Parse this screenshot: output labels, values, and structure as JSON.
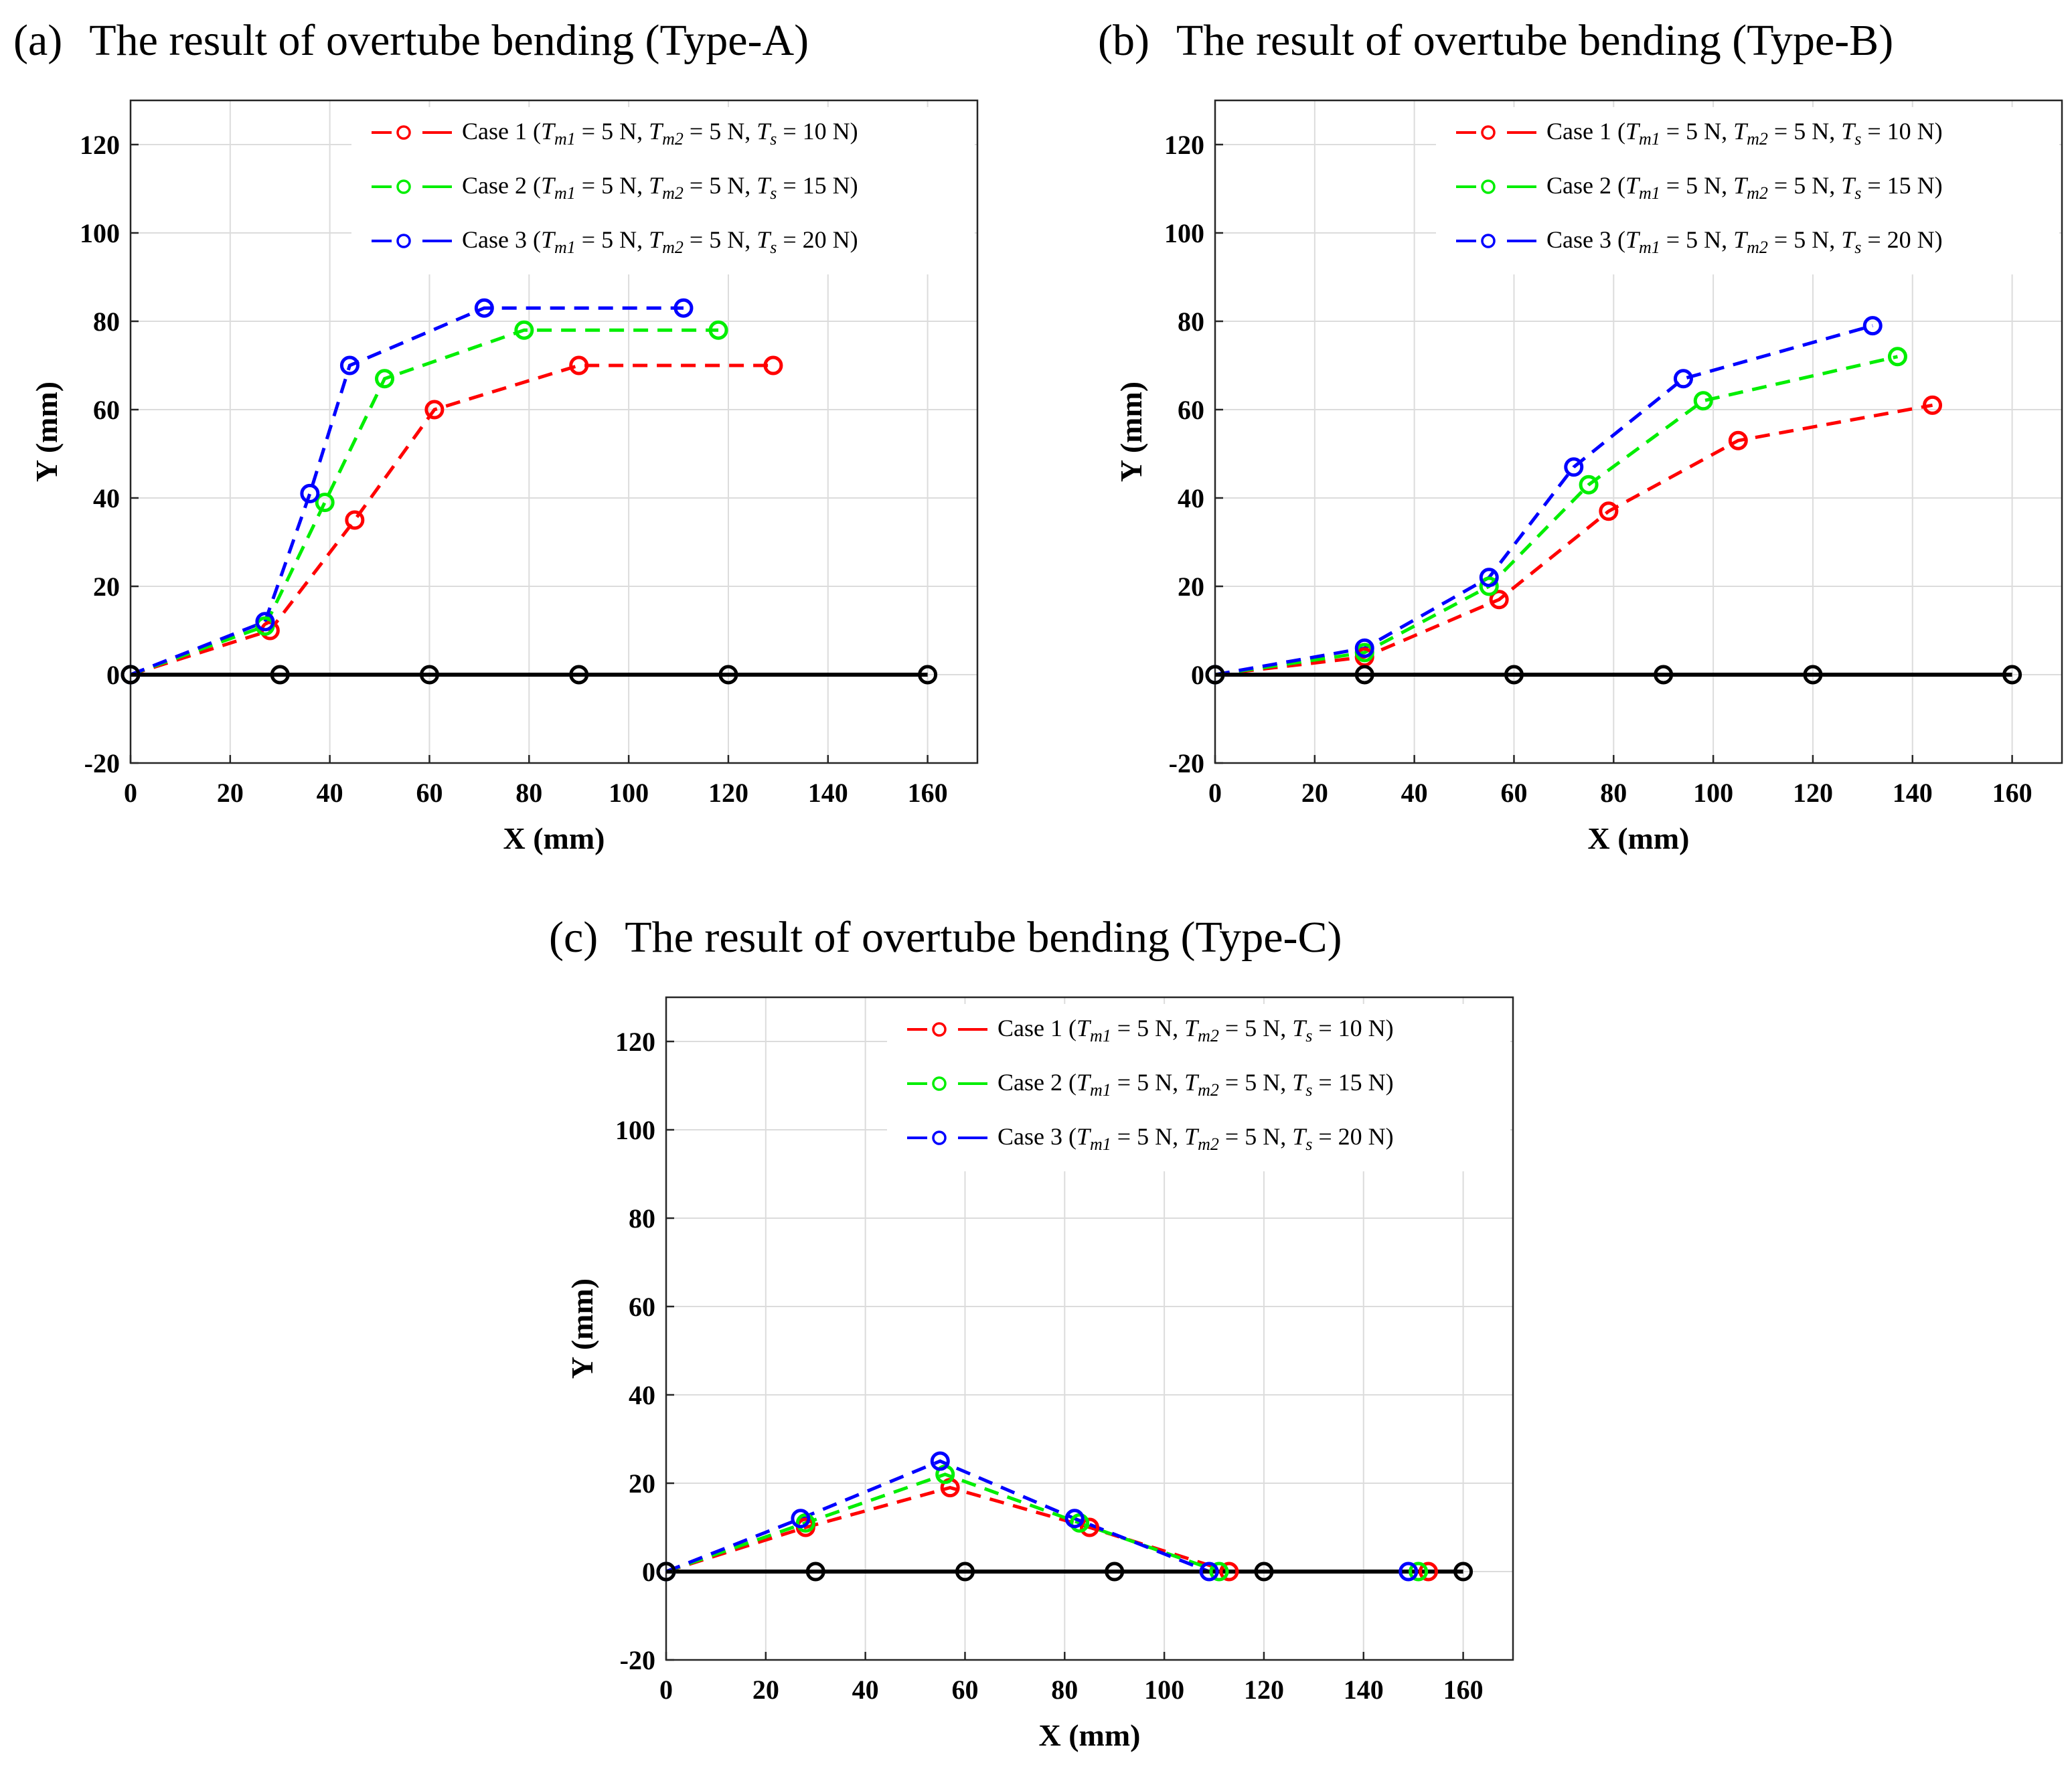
{
  "chart_data": [
    {
      "type": "line",
      "panel_letter": "(a)",
      "title": "The result of overtube bending (Type-A)",
      "xlabel": "X (mm)",
      "ylabel": "Y (mm)",
      "xlim": [
        0,
        170
      ],
      "ylim": [
        -20,
        130
      ],
      "xticks": [
        0,
        20,
        40,
        60,
        80,
        100,
        120,
        140,
        160
      ],
      "yticks": [
        -20,
        0,
        20,
        40,
        60,
        80,
        100,
        120
      ],
      "grid": true,
      "legend_position": "top-right",
      "series": [
        {
          "name": "Case 1",
          "tm1": "5 N",
          "tm2": "5 N",
          "ts": "10 N",
          "color": "#ff0000",
          "style": "dashed",
          "x": [
            0,
            28,
            45,
            61,
            90,
            129
          ],
          "y": [
            0,
            10,
            35,
            60,
            70,
            70
          ]
        },
        {
          "name": "Case 2",
          "tm1": "5 N",
          "tm2": "5 N",
          "ts": "15 N",
          "color": "#00ee00",
          "style": "dashed",
          "x": [
            0,
            27,
            39,
            51,
            79,
            118
          ],
          "y": [
            0,
            11,
            39,
            67,
            78,
            78
          ]
        },
        {
          "name": "Case 3",
          "tm1": "5 N",
          "tm2": "5 N",
          "ts": "20 N",
          "color": "#0000ff",
          "style": "dashed",
          "x": [
            0,
            27,
            36,
            44,
            71,
            111
          ],
          "y": [
            0,
            12,
            41,
            70,
            83,
            83
          ]
        },
        {
          "name": "",
          "color": "#000000",
          "style": "solid",
          "x": [
            0,
            30,
            60,
            90,
            120,
            160
          ],
          "y": [
            0,
            0,
            0,
            0,
            0,
            0
          ]
        }
      ]
    },
    {
      "type": "line",
      "panel_letter": "(b)",
      "title": "The result of overtube bending (Type-B)",
      "xlabel": "X (mm)",
      "ylabel": "Y (mm)",
      "xlim": [
        0,
        170
      ],
      "ylim": [
        -20,
        130
      ],
      "xticks": [
        0,
        20,
        40,
        60,
        80,
        100,
        120,
        140,
        160
      ],
      "yticks": [
        -20,
        0,
        20,
        40,
        60,
        80,
        100,
        120
      ],
      "grid": true,
      "legend_position": "top-right",
      "series": [
        {
          "name": "Case 1",
          "tm1": "5 N",
          "tm2": "5 N",
          "ts": "10 N",
          "color": "#ff0000",
          "style": "dashed",
          "x": [
            0,
            30,
            57,
            79,
            105,
            144
          ],
          "y": [
            0,
            4,
            17,
            37,
            53,
            61
          ]
        },
        {
          "name": "Case 2",
          "tm1": "5 N",
          "tm2": "5 N",
          "ts": "15 N",
          "color": "#00ee00",
          "style": "dashed",
          "x": [
            0,
            30,
            55,
            75,
            98,
            137
          ],
          "y": [
            0,
            5,
            20,
            43,
            62,
            72
          ]
        },
        {
          "name": "Case 3",
          "tm1": "5 N",
          "tm2": "5 N",
          "ts": "20 N",
          "color": "#0000ff",
          "style": "dashed",
          "x": [
            0,
            30,
            55,
            72,
            94,
            132
          ],
          "y": [
            0,
            6,
            22,
            47,
            67,
            79
          ]
        },
        {
          "name": "",
          "color": "#000000",
          "style": "solid",
          "x": [
            0,
            30,
            60,
            90,
            120,
            160
          ],
          "y": [
            0,
            0,
            0,
            0,
            0,
            0
          ]
        }
      ]
    },
    {
      "type": "line",
      "panel_letter": "(c)",
      "title": "The result of overtube bending (Type-C)",
      "xlabel": "X (mm)",
      "ylabel": "Y (mm)",
      "xlim": [
        0,
        170
      ],
      "ylim": [
        -20,
        130
      ],
      "xticks": [
        0,
        20,
        40,
        60,
        80,
        100,
        120,
        140,
        160
      ],
      "yticks": [
        -20,
        0,
        20,
        40,
        60,
        80,
        100,
        120
      ],
      "grid": true,
      "legend_position": "top-right",
      "series": [
        {
          "name": "Case 1",
          "tm1": "5 N",
          "tm2": "5 N",
          "ts": "10 N",
          "color": "#ff0000",
          "style": "dashed",
          "x": [
            0,
            28,
            57,
            85,
            113,
            153
          ],
          "y": [
            0,
            10,
            19,
            10,
            0,
            0
          ]
        },
        {
          "name": "Case 2",
          "tm1": "5 N",
          "tm2": "5 N",
          "ts": "15 N",
          "color": "#00ee00",
          "style": "dashed",
          "x": [
            0,
            28,
            56,
            83,
            111,
            151
          ],
          "y": [
            0,
            11,
            22,
            11,
            0,
            0
          ]
        },
        {
          "name": "Case 3",
          "tm1": "5 N",
          "tm2": "5 N",
          "ts": "20 N",
          "color": "#0000ff",
          "style": "dashed",
          "x": [
            0,
            27,
            55,
            82,
            109,
            149
          ],
          "y": [
            0,
            12,
            25,
            12,
            0,
            0
          ]
        },
        {
          "name": "",
          "color": "#000000",
          "style": "solid",
          "x": [
            0,
            30,
            60,
            90,
            120,
            160
          ],
          "y": [
            0,
            0,
            0,
            0,
            0,
            0
          ]
        }
      ]
    }
  ]
}
